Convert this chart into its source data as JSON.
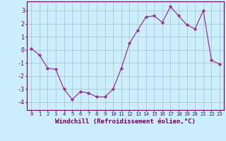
{
  "x": [
    0,
    1,
    2,
    3,
    4,
    5,
    6,
    7,
    8,
    9,
    10,
    11,
    12,
    13,
    14,
    15,
    16,
    17,
    18,
    19,
    20,
    21,
    22,
    23
  ],
  "y": [
    0.1,
    -0.4,
    -1.4,
    -1.5,
    -3.0,
    -3.8,
    -3.2,
    -3.3,
    -3.6,
    -3.6,
    -3.0,
    -1.4,
    0.5,
    1.5,
    2.5,
    2.6,
    2.1,
    3.3,
    2.6,
    1.9,
    1.6,
    3.0,
    -0.8,
    -1.1
  ],
  "line_color": "#993399",
  "marker": "D",
  "marker_size": 2.2,
  "bg_color": "#cceeff",
  "grid_color": "#aacccc",
  "xlabel": "Windchill (Refroidissement éolien,°C)",
  "xlabel_fontsize": 6.5,
  "ytick_fontsize": 6.0,
  "xtick_fontsize": 5.2,
  "yticks": [
    -4,
    -3,
    -2,
    -1,
    0,
    1,
    2,
    3
  ],
  "xticks": [
    0,
    1,
    2,
    3,
    4,
    5,
    6,
    7,
    8,
    9,
    10,
    11,
    12,
    13,
    14,
    15,
    16,
    17,
    18,
    19,
    20,
    21,
    22,
    23
  ],
  "ylim": [
    -4.6,
    3.7
  ],
  "xlim": [
    -0.5,
    23.5
  ],
  "tick_color": "#660066",
  "axis_color": "#660066",
  "spine_color": "#660066"
}
